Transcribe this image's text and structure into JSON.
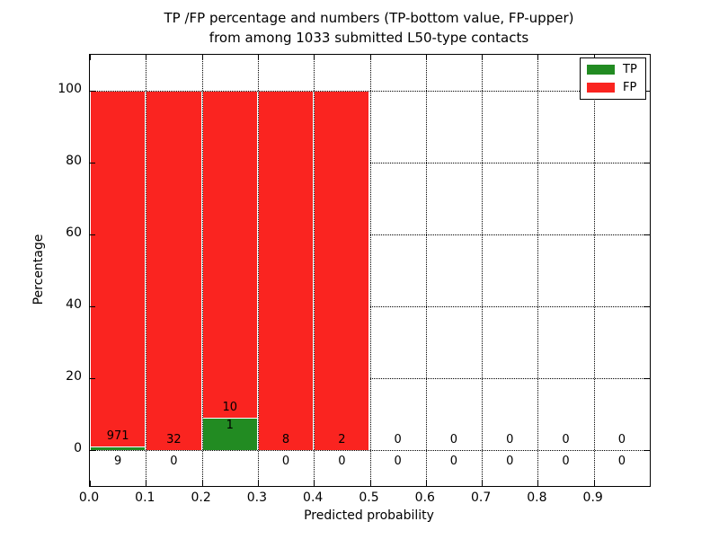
{
  "title": {
    "line1": "TP /FP percentage and numbers (TP-bottom value, FP-upper)",
    "line2": "from among 1033 submitted L50-type contacts"
  },
  "chart_data": {
    "type": "bar",
    "stacked": true,
    "title": "TP /FP percentage and numbers (TP-bottom value, FP-upper)\nfrom among 1033 submitted L50-type contacts",
    "xlabel": "Predicted probability",
    "ylabel": "Percentage",
    "xlim": [
      0.0,
      1.0
    ],
    "ylim": [
      -10,
      110
    ],
    "grid": "dotted",
    "total_contacts": 1033,
    "xticks": {
      "values": [
        0.0,
        0.1,
        0.2,
        0.3,
        0.4,
        0.5,
        0.6,
        0.7,
        0.8,
        0.9
      ],
      "labels": [
        "0.0",
        "0.1",
        "0.2",
        "0.3",
        "0.4",
        "0.5",
        "0.6",
        "0.7",
        "0.8",
        "0.9"
      ]
    },
    "yticks": {
      "values": [
        0,
        20,
        40,
        60,
        80,
        100
      ],
      "labels": [
        "0",
        "20",
        "40",
        "60",
        "80",
        "100"
      ]
    },
    "bins": [
      {
        "x0": 0.0,
        "x1": 0.1,
        "tp": 9,
        "fp": 971
      },
      {
        "x0": 0.1,
        "x1": 0.2,
        "tp": 0,
        "fp": 32
      },
      {
        "x0": 0.2,
        "x1": 0.3,
        "tp": 1,
        "fp": 10
      },
      {
        "x0": 0.3,
        "x1": 0.4,
        "tp": 0,
        "fp": 8
      },
      {
        "x0": 0.4,
        "x1": 0.5,
        "tp": 0,
        "fp": 2
      },
      {
        "x0": 0.5,
        "x1": 0.6,
        "tp": 0,
        "fp": 0
      },
      {
        "x0": 0.6,
        "x1": 0.7,
        "tp": 0,
        "fp": 0
      },
      {
        "x0": 0.7,
        "x1": 0.8,
        "tp": 0,
        "fp": 0
      },
      {
        "x0": 0.8,
        "x1": 0.9,
        "tp": 0,
        "fp": 0
      },
      {
        "x0": 0.9,
        "x1": 1.0,
        "tp": 0,
        "fp": 0
      }
    ],
    "legend": {
      "position": "upper right",
      "entries": [
        {
          "key": "tp",
          "label": "TP",
          "color": "#228b22"
        },
        {
          "key": "fp",
          "label": "FP",
          "color": "#fa2420"
        }
      ]
    },
    "colors": {
      "tp": "#228b22",
      "fp": "#fa2420",
      "bar_edge": "#ffffff",
      "grid": "#000000",
      "text": "#000000"
    }
  }
}
